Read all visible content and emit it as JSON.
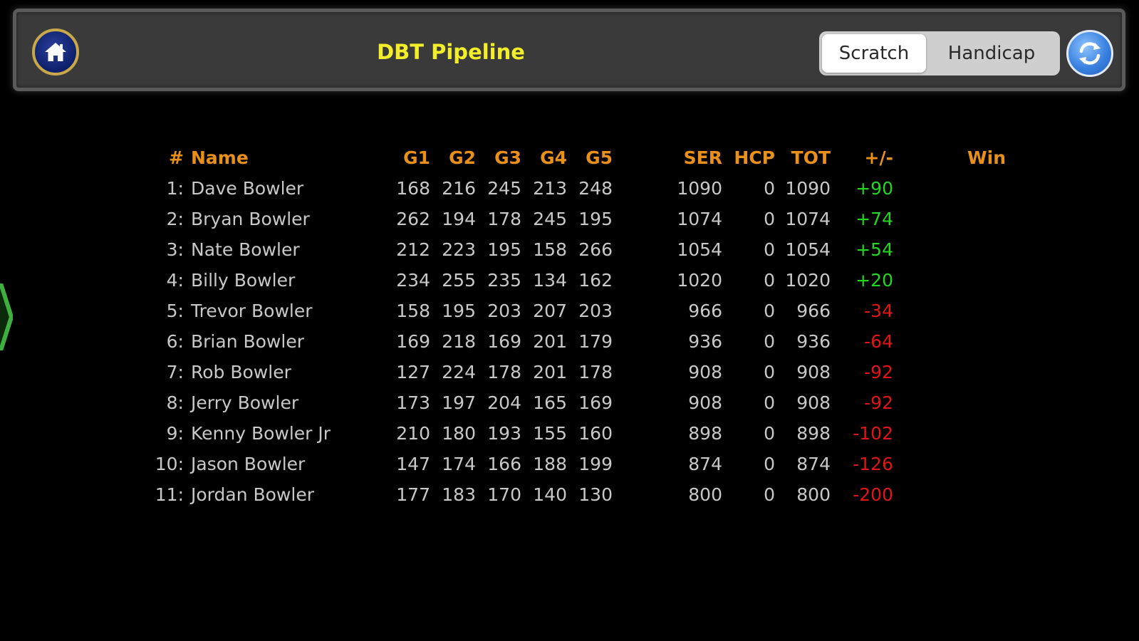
{
  "header": {
    "title": "DBT Pipeline",
    "home_icon": "home-icon",
    "refresh_icon": "refresh-icon",
    "toggle": {
      "options": [
        "Scratch",
        "Handicap"
      ],
      "selected": "Scratch"
    }
  },
  "colors": {
    "title": "#f2ee2a",
    "header_text": "#e8901a",
    "positive": "#22d622",
    "negative": "#e01616",
    "row_text": "#c8c8c8"
  },
  "table": {
    "columns": {
      "rank": "#",
      "name": "Name",
      "g1": "G1",
      "g2": "G2",
      "g3": "G3",
      "g4": "G4",
      "g5": "G5",
      "ser": "SER",
      "hcp": "HCP",
      "tot": "TOT",
      "pm": "+/-",
      "win": "Win"
    },
    "rows": [
      {
        "rank": "1:",
        "name": "Dave Bowler",
        "g1": "168",
        "g2": "216",
        "g3": "245",
        "g4": "213",
        "g5": "248",
        "ser": "1090",
        "hcp": "0",
        "tot": "1090",
        "pm": "+90",
        "win": ""
      },
      {
        "rank": "2:",
        "name": "Bryan Bowler",
        "g1": "262",
        "g2": "194",
        "g3": "178",
        "g4": "245",
        "g5": "195",
        "ser": "1074",
        "hcp": "0",
        "tot": "1074",
        "pm": "+74",
        "win": ""
      },
      {
        "rank": "3:",
        "name": "Nate Bowler",
        "g1": "212",
        "g2": "223",
        "g3": "195",
        "g4": "158",
        "g5": "266",
        "ser": "1054",
        "hcp": "0",
        "tot": "1054",
        "pm": "+54",
        "win": ""
      },
      {
        "rank": "4:",
        "name": "Billy Bowler",
        "g1": "234",
        "g2": "255",
        "g3": "235",
        "g4": "134",
        "g5": "162",
        "ser": "1020",
        "hcp": "0",
        "tot": "1020",
        "pm": "+20",
        "win": ""
      },
      {
        "rank": "5:",
        "name": "Trevor Bowler",
        "g1": "158",
        "g2": "195",
        "g3": "203",
        "g4": "207",
        "g5": "203",
        "ser": "966",
        "hcp": "0",
        "tot": "966",
        "pm": "-34",
        "win": ""
      },
      {
        "rank": "6:",
        "name": "Brian Bowler",
        "g1": "169",
        "g2": "218",
        "g3": "169",
        "g4": "201",
        "g5": "179",
        "ser": "936",
        "hcp": "0",
        "tot": "936",
        "pm": "-64",
        "win": ""
      },
      {
        "rank": "7:",
        "name": "Rob Bowler",
        "g1": "127",
        "g2": "224",
        "g3": "178",
        "g4": "201",
        "g5": "178",
        "ser": "908",
        "hcp": "0",
        "tot": "908",
        "pm": "-92",
        "win": ""
      },
      {
        "rank": "8:",
        "name": "Jerry Bowler",
        "g1": "173",
        "g2": "197",
        "g3": "204",
        "g4": "165",
        "g5": "169",
        "ser": "908",
        "hcp": "0",
        "tot": "908",
        "pm": "-92",
        "win": ""
      },
      {
        "rank": "9:",
        "name": "Kenny Bowler Jr",
        "g1": "210",
        "g2": "180",
        "g3": "193",
        "g4": "155",
        "g5": "160",
        "ser": "898",
        "hcp": "0",
        "tot": "898",
        "pm": "-102",
        "win": ""
      },
      {
        "rank": "10:",
        "name": "Jason Bowler",
        "g1": "147",
        "g2": "174",
        "g3": "166",
        "g4": "188",
        "g5": "199",
        "ser": "874",
        "hcp": "0",
        "tot": "874",
        "pm": "-126",
        "win": ""
      },
      {
        "rank": "11:",
        "name": "Jordan Bowler",
        "g1": "177",
        "g2": "183",
        "g3": "170",
        "g4": "140",
        "g5": "130",
        "ser": "800",
        "hcp": "0",
        "tot": "800",
        "pm": "-200",
        "win": ""
      }
    ]
  }
}
